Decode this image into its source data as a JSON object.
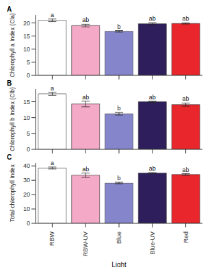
{
  "chart_data": [
    {
      "type": "bar",
      "title": "A",
      "y_label": "Chlorophyll a Index (Cla)",
      "categories": [
        "RBW",
        "RBW-UV",
        "Blue",
        "Blue-UV",
        "Red"
      ],
      "values": [
        21.0,
        19.0,
        16.8,
        19.7,
        19.8
      ],
      "errors": [
        0.5,
        0.5,
        0.3,
        0.4,
        0.2
      ],
      "annotations": [
        "a",
        "ab",
        "b",
        "ab",
        "ab"
      ],
      "colors": [
        "#ffffff",
        "#f4a9c6",
        "#8585cc",
        "#2e1f5c",
        "#e8262b"
      ],
      "ylim": [
        0,
        23
      ],
      "yticks": [
        0,
        5,
        10,
        15,
        20
      ],
      "tick_labels": "y"
    },
    {
      "type": "bar",
      "title": "B",
      "y_label": "Chlorophyll b Index (Clb)",
      "categories": [
        "RBW",
        "RBW-UV",
        "Blue",
        "Blue-UV",
        "Red"
      ],
      "values": [
        17.5,
        14.3,
        11.2,
        15.0,
        14.1
      ],
      "errors": [
        0.5,
        0.9,
        0.4,
        0.2,
        0.5
      ],
      "annotations": [
        "a",
        "ab",
        "b",
        "ab",
        "ab"
      ],
      "colors": [
        "#ffffff",
        "#f4a9c6",
        "#8585cc",
        "#2e1f5c",
        "#e8262b"
      ],
      "ylim": [
        0,
        19
      ],
      "yticks": [
        0,
        5,
        10,
        15
      ],
      "tick_labels": "y"
    },
    {
      "type": "bar",
      "title": "C",
      "y_label": "Total chlorophyll Index",
      "x_label": "Light",
      "categories": [
        "RBW",
        "RBW-UV",
        "Blue",
        "Blue-UV",
        "Red"
      ],
      "values": [
        38.5,
        33.5,
        28.0,
        35.0,
        34.0
      ],
      "errors": [
        0.7,
        1.5,
        0.6,
        0.3,
        0.6
      ],
      "annotations": [
        "a",
        "ab",
        "b",
        "ab",
        "ab"
      ],
      "colors": [
        "#ffffff",
        "#f4a9c6",
        "#8585cc",
        "#2e1f5c",
        "#e8262b"
      ],
      "ylim": [
        0,
        42
      ],
      "yticks": [
        0,
        10,
        20,
        30,
        40
      ]
    }
  ]
}
